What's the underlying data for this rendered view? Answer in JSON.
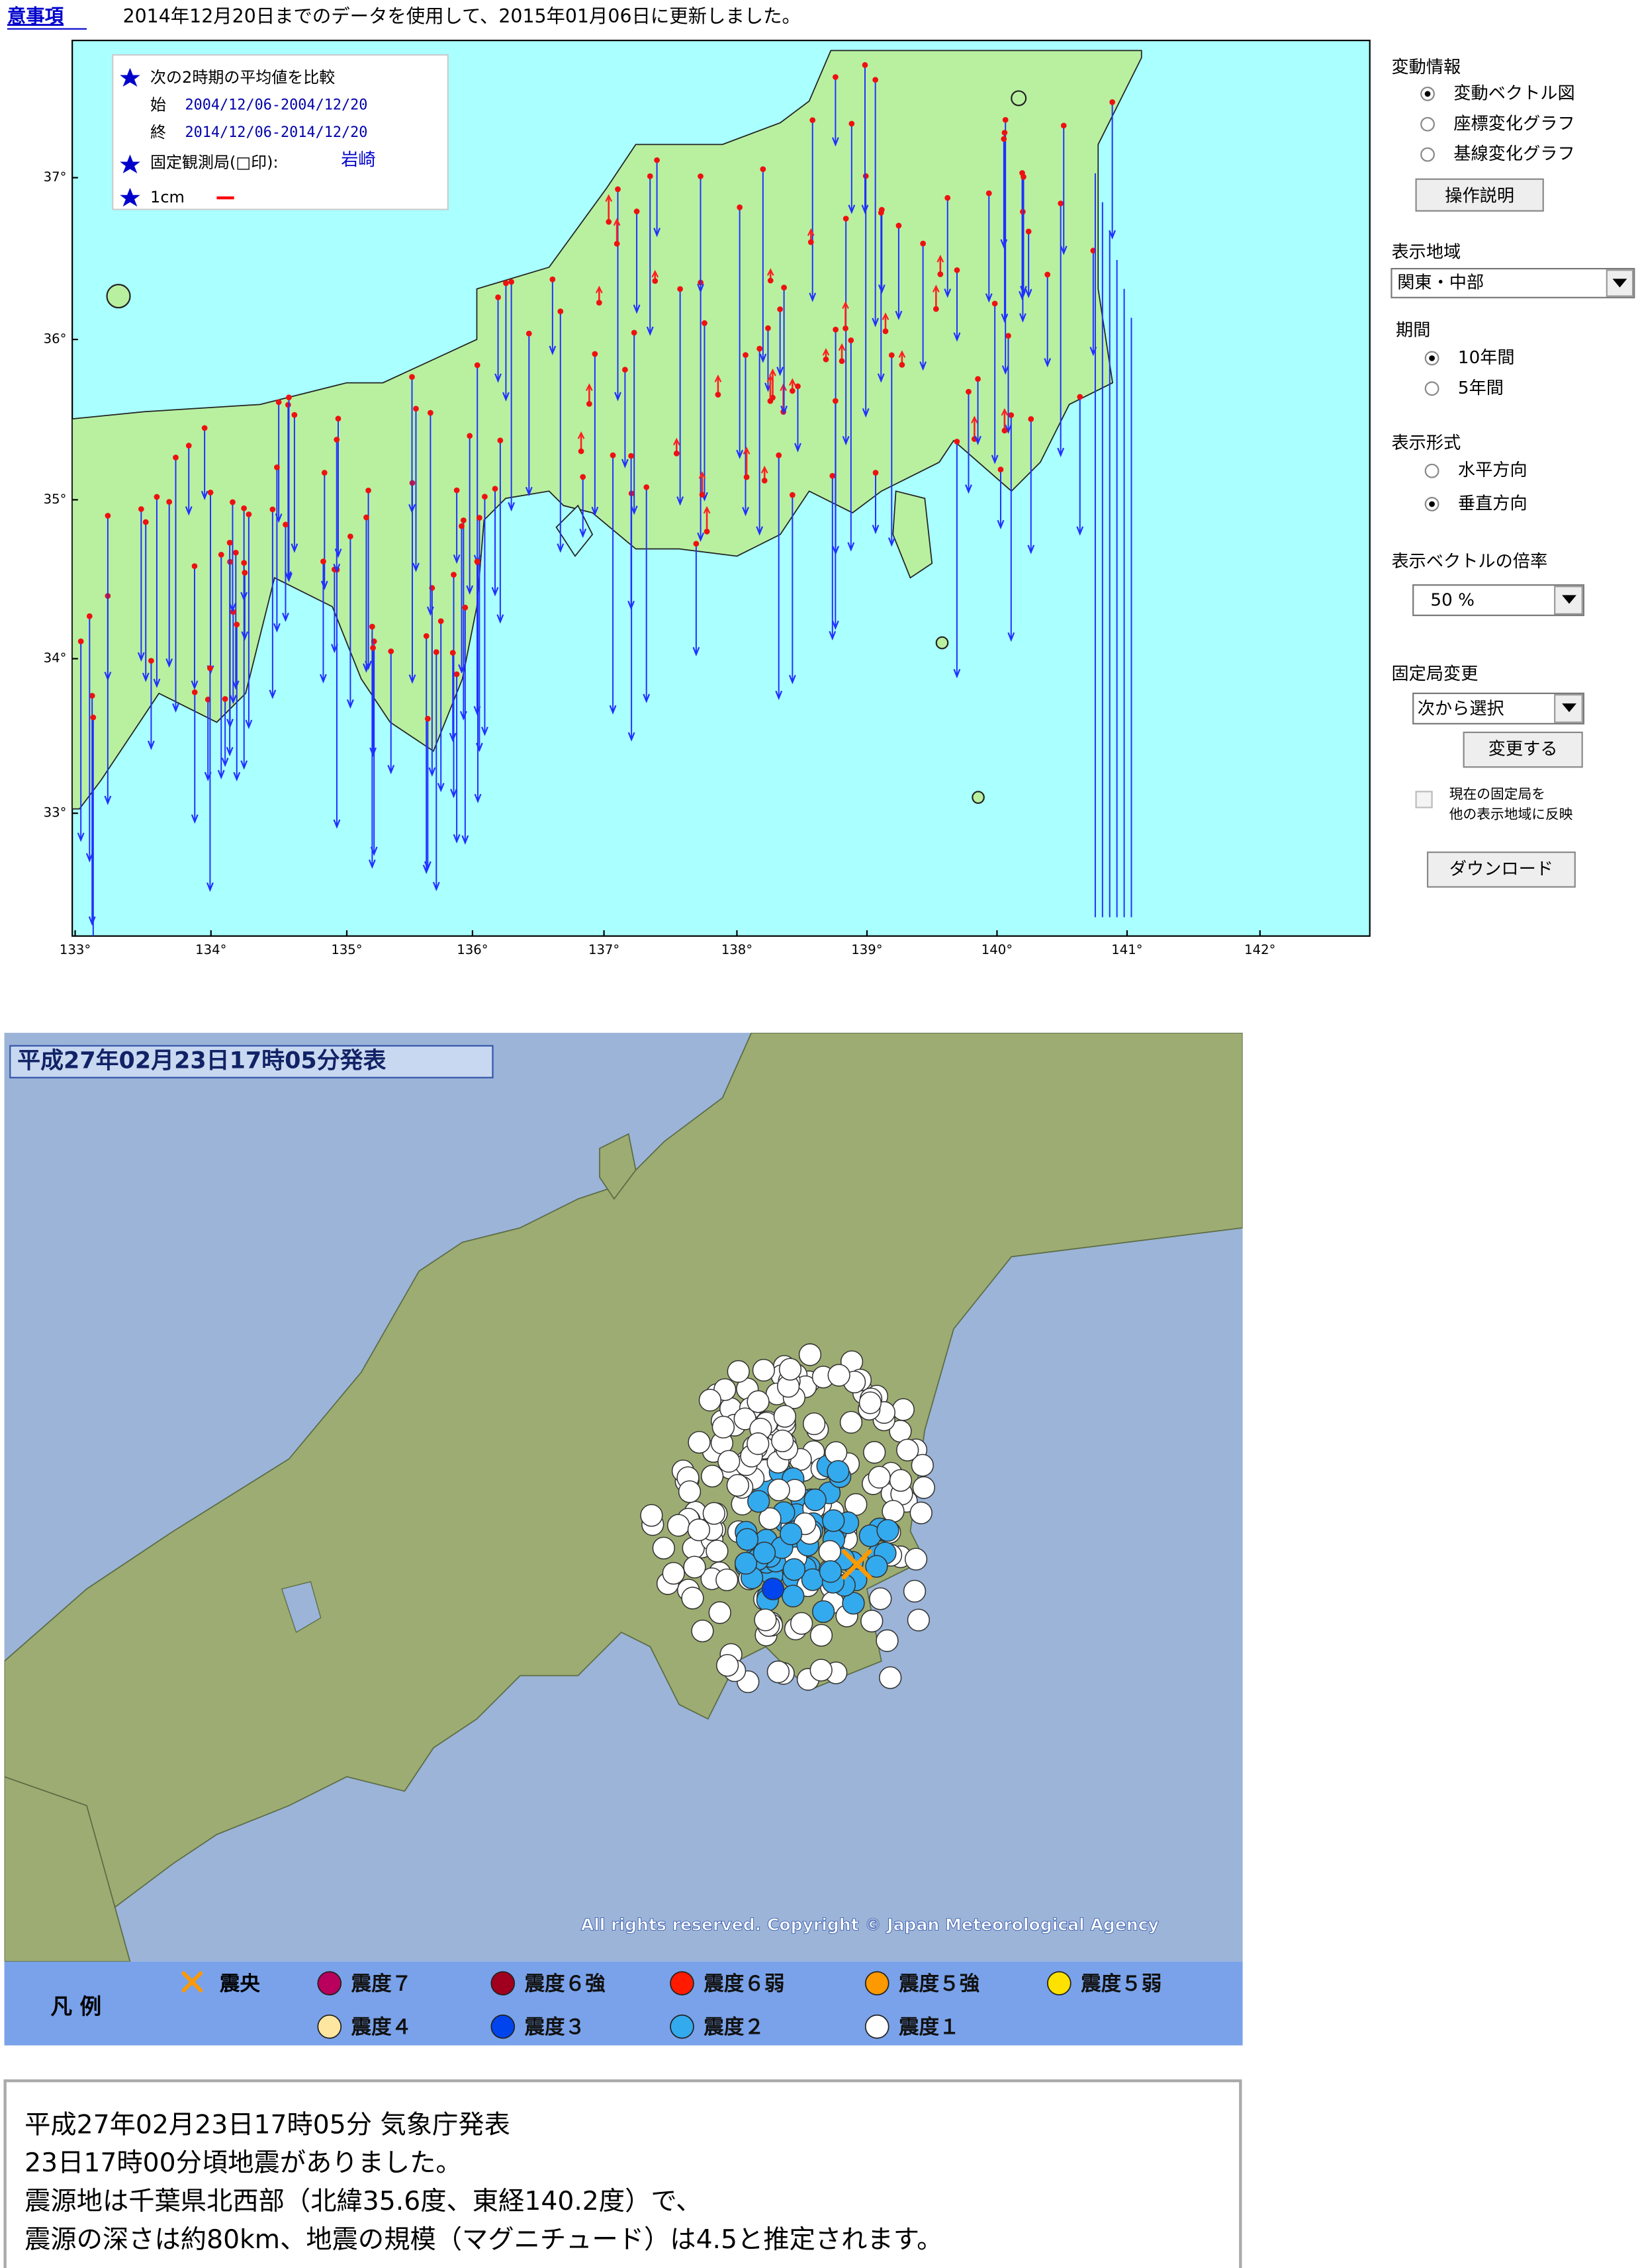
{
  "header": {
    "link": "意事項",
    "text": "2014年12月20日までのデータを使用して、2015年01月06日に更新しました。"
  },
  "gnss_map": {
    "legend": {
      "title": "次の2時期の平均値を比較",
      "start_label": "始",
      "start": "2004/12/06-2004/12/20",
      "end_label": "終",
      "end": "2014/12/06-2014/12/20",
      "fixed_label": "固定観測局(□印):",
      "fixed_station": "岩崎",
      "scale": "1cm"
    },
    "lat_labels": [
      "37°",
      "36°",
      "35°",
      "34°",
      "33°"
    ],
    "lon_labels": [
      "133°",
      "134°",
      "135°",
      "136°",
      "137°",
      "138°",
      "139°",
      "140°",
      "141°",
      "142°"
    ]
  },
  "panel": {
    "info_title": "変動情報",
    "info_options": [
      {
        "label": "変動ベクトル図",
        "selected": true
      },
      {
        "label": "座標変化グラフ",
        "selected": false
      },
      {
        "label": "基線変化グラフ",
        "selected": false
      }
    ],
    "help_button": "操作説明",
    "region_title": "表示地域",
    "region": "関東・中部",
    "period_title": "期間",
    "period_options": [
      {
        "label": "10年間",
        "selected": true
      },
      {
        "label": "5年間",
        "selected": false
      }
    ],
    "format_title": "表示形式",
    "format_options": [
      {
        "label": "水平方向",
        "selected": false
      },
      {
        "label": "垂直方向",
        "selected": true
      }
    ],
    "scale_title": "表示ベクトルの倍率",
    "scale": "50 %",
    "fixed_title": "固定局変更",
    "fixed_select": "次から選択",
    "change_button": "変更する",
    "checkbox_lines": [
      "現在の固定局を",
      "他の表示地域に反映"
    ],
    "download_button": "ダウンロード"
  },
  "quake_map": {
    "title": "平成27年02月23日17時05分発表",
    "copyright": "All rights reserved. Copyright © Japan Meteorological Agency",
    "legend_title": "凡 例",
    "epicenter": {
      "label": "震央",
      "color": "#ff9900"
    },
    "legend": [
      {
        "label": "震度７",
        "color": "#b8005c"
      },
      {
        "label": "震度６強",
        "color": "#a0001e"
      },
      {
        "label": "震度６弱",
        "color": "#ff1a00"
      },
      {
        "label": "震度５強",
        "color": "#ff9900"
      },
      {
        "label": "震度５弱",
        "color": "#ffe100"
      },
      {
        "label": "震度４",
        "color": "#ffe6a0"
      },
      {
        "label": "震度３",
        "color": "#0044ee"
      },
      {
        "label": "震度２",
        "color": "#33aaee"
      },
      {
        "label": "震度１",
        "color": "#ffffff"
      }
    ]
  },
  "report": {
    "lines": [
      "平成27年02月23日17時05分 気象庁発表",
      "23日17時00分頃地震がありました。",
      "震源地は千葉県北西部（北緯35.6度、東経140.2度）で、",
      "震源の深さは約80km、地震の規模（マグニチュード）は4.5と推定されます。"
    ]
  }
}
